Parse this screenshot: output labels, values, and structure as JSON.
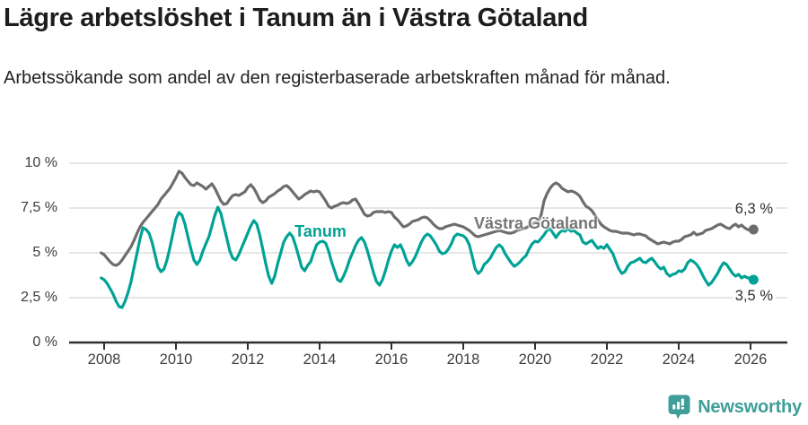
{
  "header": {
    "title": "Lägre arbetslöshet i Tanum än i Västra Götaland",
    "subtitle": "Arbetssökande som andel av den registerbaserade arbetskraften månad för månad."
  },
  "chart_data": {
    "type": "line",
    "title": "Lägre arbetslöshet i Tanum än i Västra Götaland",
    "unit": "%",
    "frequency": "monthly",
    "x_start": "2007-12",
    "x_end": "2026-02",
    "ylim": [
      0,
      10
    ],
    "grid": "horizontal",
    "legend_position": "inline-labels",
    "y_axis": {
      "ticks": [
        "10 %",
        "7,5 %",
        "5 %",
        "2,5 %",
        "0 %"
      ],
      "values": [
        10,
        7.5,
        5,
        2.5,
        0
      ]
    },
    "x_axis": {
      "ticks": [
        "2008",
        "2010",
        "2012",
        "2014",
        "2016",
        "2018",
        "2020",
        "2022",
        "2024",
        "2026"
      ],
      "values": [
        2008,
        2010,
        2012,
        2014,
        2016,
        2018,
        2020,
        2022,
        2024,
        2026
      ]
    },
    "series": [
      {
        "name": "Västra Götaland",
        "color": "#6d6d6d",
        "end_label": "6,3 %",
        "end_value": 6.3,
        "values": [
          5.0,
          4.9,
          4.7,
          4.5,
          4.35,
          4.3,
          4.4,
          4.6,
          4.85,
          5.1,
          5.35,
          5.7,
          6.1,
          6.45,
          6.7,
          6.9,
          7.1,
          7.3,
          7.5,
          7.7,
          8.0,
          8.2,
          8.4,
          8.6,
          8.9,
          9.2,
          9.55,
          9.45,
          9.2,
          9.0,
          8.8,
          8.75,
          8.9,
          8.8,
          8.7,
          8.55,
          8.7,
          8.85,
          8.6,
          8.25,
          7.9,
          7.7,
          7.75,
          8.0,
          8.2,
          8.25,
          8.2,
          8.3,
          8.4,
          8.65,
          8.8,
          8.6,
          8.3,
          7.95,
          7.8,
          7.9,
          8.1,
          8.2,
          8.3,
          8.45,
          8.55,
          8.7,
          8.75,
          8.6,
          8.4,
          8.2,
          8.0,
          8.1,
          8.25,
          8.35,
          8.45,
          8.4,
          8.45,
          8.4,
          8.15,
          7.9,
          7.6,
          7.5,
          7.6,
          7.65,
          7.75,
          7.8,
          7.75,
          7.8,
          7.95,
          8.0,
          7.75,
          7.45,
          7.15,
          7.05,
          7.1,
          7.25,
          7.3,
          7.3,
          7.3,
          7.25,
          7.3,
          7.25,
          7.0,
          6.85,
          6.65,
          6.45,
          6.5,
          6.6,
          6.75,
          6.8,
          6.85,
          6.95,
          7.0,
          6.95,
          6.8,
          6.6,
          6.45,
          6.35,
          6.35,
          6.45,
          6.5,
          6.55,
          6.6,
          6.55,
          6.5,
          6.45,
          6.35,
          6.25,
          6.1,
          5.95,
          5.9,
          5.95,
          6.0,
          6.05,
          6.1,
          6.15,
          6.2,
          6.25,
          6.2,
          6.15,
          6.1,
          6.1,
          6.15,
          6.25,
          6.3,
          6.35,
          6.4,
          6.5,
          6.6,
          6.7,
          6.75,
          7.1,
          7.9,
          8.3,
          8.6,
          8.8,
          8.9,
          8.8,
          8.6,
          8.5,
          8.4,
          8.45,
          8.4,
          8.3,
          8.15,
          7.85,
          7.6,
          7.5,
          7.35,
          7.1,
          6.85,
          6.6,
          6.45,
          6.35,
          6.25,
          6.2,
          6.2,
          6.15,
          6.1,
          6.1,
          6.1,
          6.05,
          6.0,
          6.05,
          6.05,
          6.0,
          5.95,
          5.8,
          5.7,
          5.6,
          5.5,
          5.55,
          5.6,
          5.55,
          5.5,
          5.6,
          5.65,
          5.65,
          5.75,
          5.9,
          5.95,
          6.0,
          6.15,
          6.0,
          6.05,
          6.1,
          6.25,
          6.3,
          6.35,
          6.45,
          6.55,
          6.6,
          6.5,
          6.4,
          6.35,
          6.5,
          6.6,
          6.45,
          6.55,
          6.4,
          6.3,
          6.25,
          6.3
        ]
      },
      {
        "name": "Tanum",
        "color": "#00a296",
        "end_label": "3,5 %",
        "end_value": 3.5,
        "values": [
          3.6,
          3.5,
          3.3,
          3.0,
          2.7,
          2.3,
          2.0,
          1.95,
          2.3,
          2.8,
          3.4,
          4.2,
          5.0,
          5.8,
          6.4,
          6.3,
          6.1,
          5.6,
          4.9,
          4.2,
          3.95,
          4.1,
          4.6,
          5.3,
          6.1,
          6.9,
          7.25,
          7.1,
          6.6,
          5.9,
          5.2,
          4.6,
          4.35,
          4.6,
          5.1,
          5.5,
          5.9,
          6.5,
          7.1,
          7.55,
          7.2,
          6.5,
          5.8,
          5.1,
          4.7,
          4.6,
          4.9,
          5.3,
          5.7,
          6.1,
          6.5,
          6.8,
          6.6,
          6.0,
          5.2,
          4.4,
          3.7,
          3.3,
          3.7,
          4.4,
          5.0,
          5.6,
          5.9,
          6.1,
          5.9,
          5.4,
          4.8,
          4.2,
          4.0,
          4.3,
          4.5,
          5.0,
          5.45,
          5.6,
          5.65,
          5.55,
          5.1,
          4.5,
          4.0,
          3.5,
          3.4,
          3.7,
          4.1,
          4.6,
          5.0,
          5.4,
          5.7,
          5.85,
          5.6,
          5.1,
          4.5,
          3.9,
          3.4,
          3.2,
          3.5,
          4.0,
          4.6,
          5.1,
          5.45,
          5.3,
          5.45,
          5.1,
          4.6,
          4.3,
          4.5,
          4.8,
          5.2,
          5.6,
          5.9,
          6.05,
          5.95,
          5.7,
          5.45,
          5.1,
          4.95,
          5.0,
          5.2,
          5.5,
          5.9,
          6.05,
          6.0,
          5.95,
          5.8,
          5.45,
          4.8,
          4.1,
          3.85,
          4.0,
          4.35,
          4.5,
          4.7,
          5.0,
          5.3,
          5.45,
          5.3,
          4.95,
          4.7,
          4.45,
          4.25,
          4.35,
          4.5,
          4.7,
          4.85,
          5.2,
          5.5,
          5.65,
          5.6,
          5.8,
          6.0,
          6.25,
          6.35,
          6.1,
          5.85,
          6.1,
          6.25,
          6.2,
          6.35,
          6.2,
          6.25,
          6.1,
          6.0,
          5.6,
          5.5,
          5.6,
          5.7,
          5.45,
          5.25,
          5.35,
          5.25,
          5.45,
          5.2,
          4.95,
          4.5,
          4.1,
          3.85,
          3.95,
          4.25,
          4.45,
          4.5,
          4.6,
          4.7,
          4.5,
          4.45,
          4.6,
          4.7,
          4.5,
          4.25,
          4.1,
          4.2,
          3.85,
          3.7,
          3.8,
          3.85,
          4.0,
          3.95,
          4.1,
          4.45,
          4.6,
          4.5,
          4.35,
          4.1,
          3.75,
          3.45,
          3.2,
          3.35,
          3.6,
          3.85,
          4.2,
          4.45,
          4.35,
          4.1,
          3.85,
          3.7,
          3.8,
          3.6,
          3.7,
          3.6,
          3.6,
          3.5
        ]
      }
    ],
    "colors": {
      "tanum": "#00a296",
      "vastra_gotaland": "#6d6d6d",
      "axis": "#2f2f2f",
      "grid": "#d8d8d8"
    }
  },
  "footer": {
    "brand": "Newsworthy",
    "brand_color": "#3f9e98"
  }
}
